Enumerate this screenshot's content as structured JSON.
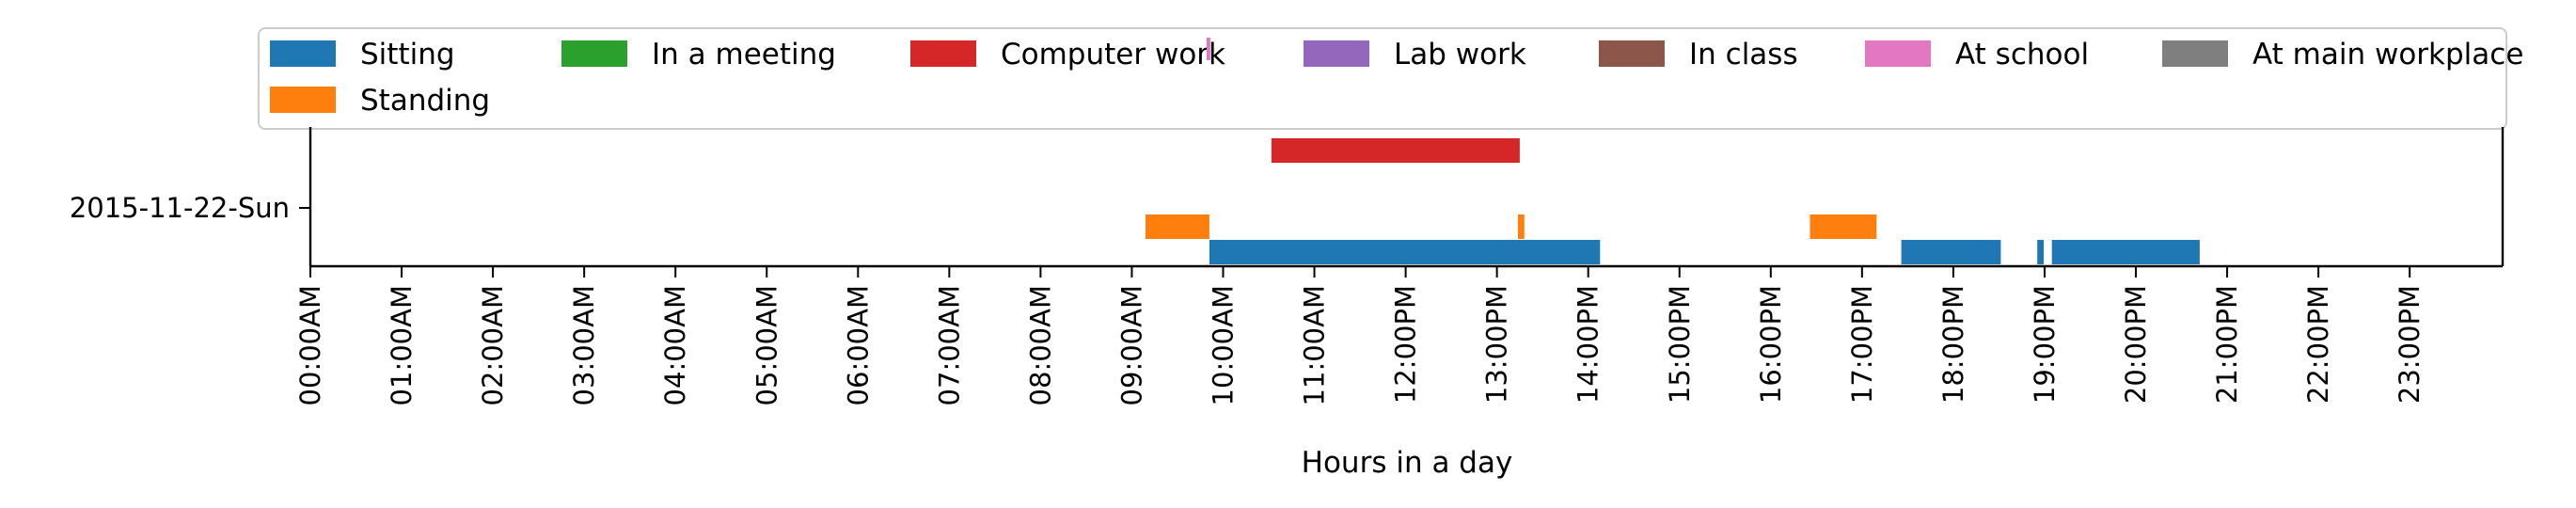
{
  "chart_data": {
    "type": "timeline",
    "title": "",
    "xlabel": "Hours in a day",
    "ylabel": "",
    "xlim": [
      0,
      24
    ],
    "category": "2015-11-22-Sun",
    "x_ticks": [
      {
        "value": 0,
        "label": "00:00AM"
      },
      {
        "value": 1,
        "label": "01:00AM"
      },
      {
        "value": 2,
        "label": "02:00AM"
      },
      {
        "value": 3,
        "label": "03:00AM"
      },
      {
        "value": 4,
        "label": "04:00AM"
      },
      {
        "value": 5,
        "label": "05:00AM"
      },
      {
        "value": 6,
        "label": "06:00AM"
      },
      {
        "value": 7,
        "label": "07:00AM"
      },
      {
        "value": 8,
        "label": "08:00AM"
      },
      {
        "value": 9,
        "label": "09:00AM"
      },
      {
        "value": 10,
        "label": "10:00AM"
      },
      {
        "value": 11,
        "label": "11:00AM"
      },
      {
        "value": 12,
        "label": "12:00PM"
      },
      {
        "value": 13,
        "label": "13:00PM"
      },
      {
        "value": 14,
        "label": "14:00PM"
      },
      {
        "value": 15,
        "label": "15:00PM"
      },
      {
        "value": 16,
        "label": "16:00PM"
      },
      {
        "value": 17,
        "label": "17:00PM"
      },
      {
        "value": 18,
        "label": "18:00PM"
      },
      {
        "value": 19,
        "label": "19:00PM"
      },
      {
        "value": 20,
        "label": "20:00PM"
      },
      {
        "value": 21,
        "label": "21:00PM"
      },
      {
        "value": 22,
        "label": "22:00PM"
      },
      {
        "value": 23,
        "label": "23:00PM"
      }
    ],
    "legend_position": "top, above plot",
    "grid": false,
    "series": [
      {
        "name": "Sitting",
        "color": "#1f77b4",
        "level": 0,
        "intervals": [
          [
            9.85,
            14.13
          ],
          [
            17.43,
            18.52
          ],
          [
            18.92,
            18.99
          ],
          [
            19.08,
            20.7
          ]
        ]
      },
      {
        "name": "Standing",
        "color": "#ff7f0e",
        "level": 0.25,
        "intervals": [
          [
            9.15,
            9.85
          ],
          [
            13.23,
            13.3
          ],
          [
            16.43,
            17.16
          ]
        ]
      },
      {
        "name": "In a meeting",
        "color": "#2ca02c",
        "level": 0.5,
        "intervals": []
      },
      {
        "name": "Computer work",
        "color": "#d62728",
        "level": 1,
        "intervals": [
          [
            10.53,
            13.25
          ]
        ]
      },
      {
        "name": "Lab work",
        "color": "#9467bd",
        "level": 1.5,
        "intervals": []
      },
      {
        "name": "In class",
        "color": "#8c564b",
        "level": 1.75,
        "intervals": []
      },
      {
        "name": "At school",
        "color": "#e377c2",
        "level": 2,
        "intervals": [
          [
            9.82,
            9.86
          ]
        ]
      },
      {
        "name": "At main workplace",
        "color": "#7f7f7f",
        "level": 2.25,
        "intervals": []
      }
    ]
  }
}
